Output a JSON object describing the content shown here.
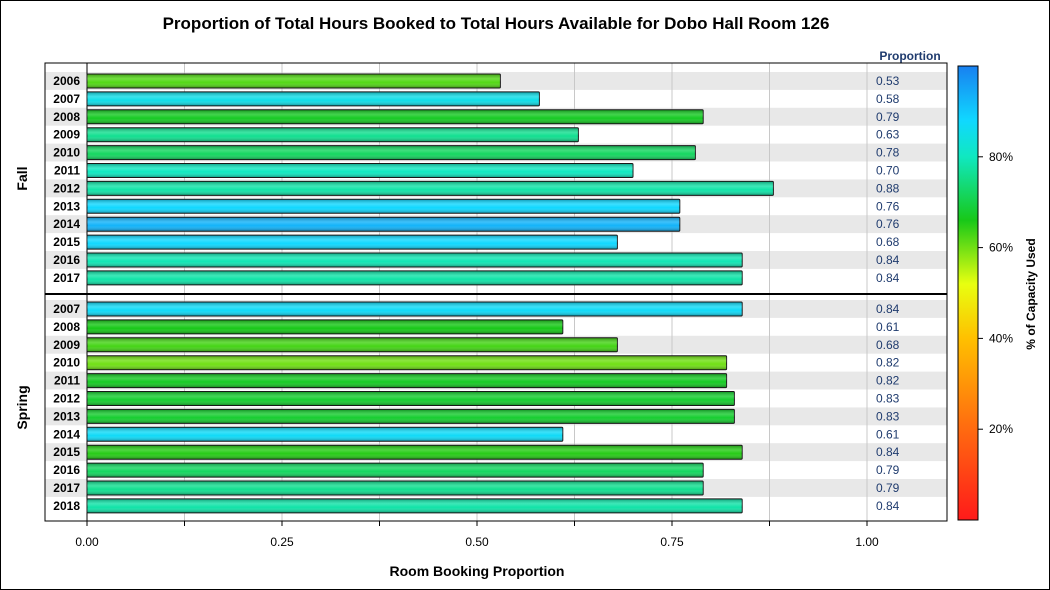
{
  "chart_data": {
    "type": "bar",
    "orientation": "horizontal",
    "title": "Proportion of Total Hours Booked to Total Hours Available for Dobo Hall Room 126",
    "xlabel": "Room Booking Proportion",
    "value_column_label": "Proportion",
    "color_legend_label": "% of Capacity Used",
    "xlim": [
      0,
      1.1
    ],
    "x_ticks": [
      "0.00",
      "0.25",
      "0.50",
      "0.75",
      "1.00"
    ],
    "x_tick_values": [
      0,
      0.25,
      0.5,
      0.75,
      1.0
    ],
    "color_ticks": [
      "20%",
      "40%",
      "60%",
      "80%"
    ],
    "color_tick_values": [
      20,
      40,
      60,
      80
    ],
    "color_range": [
      0,
      100
    ],
    "grid": true,
    "groups": [
      {
        "name": "Fall",
        "rows": [
          {
            "year": "2006",
            "value": 0.53,
            "label": "0.53",
            "capacity": 62
          },
          {
            "year": "2007",
            "value": 0.58,
            "label": "0.58",
            "capacity": 85
          },
          {
            "year": "2008",
            "value": 0.79,
            "label": "0.79",
            "capacity": 67
          },
          {
            "year": "2009",
            "value": 0.63,
            "label": "0.63",
            "capacity": 76
          },
          {
            "year": "2010",
            "value": 0.78,
            "label": "0.78",
            "capacity": 72
          },
          {
            "year": "2011",
            "value": 0.7,
            "label": "0.70",
            "capacity": 80
          },
          {
            "year": "2012",
            "value": 0.88,
            "label": "0.88",
            "capacity": 78
          },
          {
            "year": "2013",
            "value": 0.76,
            "label": "0.76",
            "capacity": 88
          },
          {
            "year": "2014",
            "value": 0.76,
            "label": "0.76",
            "capacity": 93
          },
          {
            "year": "2015",
            "value": 0.68,
            "label": "0.68",
            "capacity": 88
          },
          {
            "year": "2016",
            "value": 0.84,
            "label": "0.84",
            "capacity": 79
          },
          {
            "year": "2017",
            "value": 0.84,
            "label": "0.84",
            "capacity": 78
          }
        ]
      },
      {
        "name": "Spring",
        "rows": [
          {
            "year": "2007",
            "value": 0.84,
            "label": "0.84",
            "capacity": 87
          },
          {
            "year": "2008",
            "value": 0.61,
            "label": "0.61",
            "capacity": 66
          },
          {
            "year": "2009",
            "value": 0.68,
            "label": "0.68",
            "capacity": 63
          },
          {
            "year": "2010",
            "value": 0.82,
            "label": "0.82",
            "capacity": 60
          },
          {
            "year": "2011",
            "value": 0.82,
            "label": "0.82",
            "capacity": 67
          },
          {
            "year": "2012",
            "value": 0.83,
            "label": "0.83",
            "capacity": 68
          },
          {
            "year": "2013",
            "value": 0.83,
            "label": "0.83",
            "capacity": 68
          },
          {
            "year": "2014",
            "value": 0.61,
            "label": "0.61",
            "capacity": 87
          },
          {
            "year": "2015",
            "value": 0.84,
            "label": "0.84",
            "capacity": 65
          },
          {
            "year": "2016",
            "value": 0.79,
            "label": "0.79",
            "capacity": 72
          },
          {
            "year": "2017",
            "value": 0.79,
            "label": "0.79",
            "capacity": 76
          },
          {
            "year": "2018",
            "value": 0.84,
            "label": "0.84",
            "capacity": 78
          }
        ]
      }
    ]
  }
}
